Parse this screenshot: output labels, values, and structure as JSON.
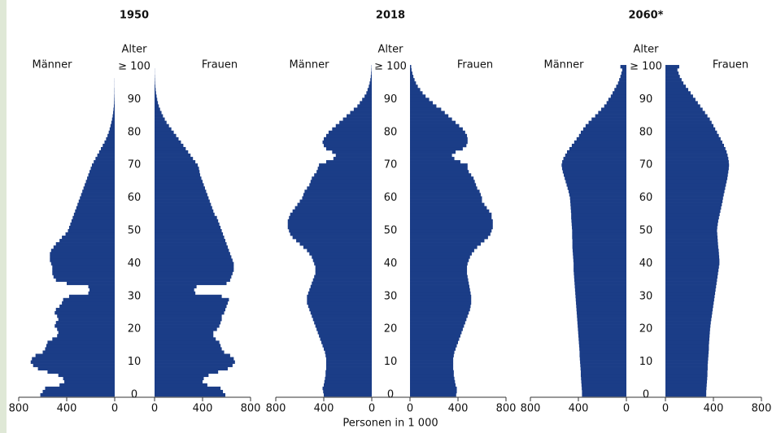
{
  "xlabel": "Personen in 1 000",
  "chart_data": [
    {
      "type": "population-pyramid",
      "title": "1950",
      "age_label": "Alter",
      "xlim": [
        0,
        800
      ],
      "xticks": [
        0,
        400,
        800
      ],
      "categories": [
        "0",
        null,
        null,
        null,
        null,
        null,
        null,
        null,
        null,
        null,
        "10",
        null,
        null,
        null,
        null,
        null,
        null,
        null,
        null,
        null,
        "20",
        null,
        null,
        null,
        null,
        null,
        null,
        null,
        null,
        null,
        "30",
        null,
        null,
        null,
        null,
        null,
        null,
        null,
        null,
        null,
        "40",
        null,
        null,
        null,
        null,
        null,
        null,
        null,
        null,
        null,
        "50",
        null,
        null,
        null,
        null,
        null,
        null,
        null,
        null,
        null,
        "60",
        null,
        null,
        null,
        null,
        null,
        null,
        null,
        null,
        null,
        "70",
        null,
        null,
        null,
        null,
        null,
        null,
        null,
        null,
        null,
        "80",
        null,
        null,
        null,
        null,
        null,
        null,
        null,
        null,
        null,
        "90",
        null,
        null,
        null,
        null,
        null,
        null,
        null,
        null,
        null,
        "≥ 100"
      ],
      "series": [
        {
          "name": "Männer",
          "color": "#1b3d87",
          "values": [
            620,
            600,
            580,
            460,
            420,
            430,
            470,
            560,
            640,
            680,
            700,
            690,
            660,
            600,
            580,
            570,
            560,
            520,
            480,
            470,
            480,
            500,
            490,
            470,
            480,
            500,
            490,
            460,
            440,
            430,
            380,
            220,
            210,
            220,
            400,
            490,
            510,
            520,
            520,
            520,
            530,
            540,
            540,
            540,
            530,
            510,
            490,
            460,
            440,
            410,
            390,
            380,
            370,
            360,
            350,
            340,
            330,
            320,
            310,
            300,
            290,
            280,
            270,
            260,
            250,
            240,
            230,
            220,
            210,
            200,
            190,
            175,
            160,
            145,
            130,
            115,
            100,
            85,
            72,
            60,
            50,
            42,
            35,
            28,
            22,
            17,
            13,
            10,
            7,
            5,
            4,
            3,
            2,
            2,
            1,
            1,
            1,
            0,
            0,
            0,
            0
          ]
        },
        {
          "name": "Frauen",
          "color": "#1b3d87",
          "values": [
            590,
            570,
            550,
            440,
            400,
            410,
            450,
            530,
            610,
            650,
            670,
            660,
            630,
            580,
            560,
            550,
            540,
            510,
            490,
            490,
            520,
            540,
            550,
            560,
            560,
            580,
            590,
            600,
            610,
            620,
            560,
            340,
            330,
            350,
            600,
            630,
            640,
            650,
            660,
            660,
            660,
            650,
            640,
            630,
            620,
            610,
            600,
            590,
            580,
            570,
            560,
            550,
            540,
            530,
            520,
            500,
            490,
            480,
            470,
            460,
            450,
            440,
            430,
            420,
            410,
            400,
            390,
            380,
            375,
            370,
            360,
            340,
            320,
            300,
            280,
            260,
            240,
            220,
            200,
            180,
            160,
            140,
            120,
            100,
            85,
            70,
            58,
            46,
            36,
            28,
            22,
            17,
            12,
            9,
            6,
            4,
            3,
            2,
            1,
            1,
            0
          ]
        }
      ]
    },
    {
      "type": "population-pyramid",
      "title": "2018",
      "age_label": "Alter",
      "xlim": [
        0,
        800
      ],
      "xticks": [
        0,
        400,
        800
      ],
      "categories": [
        "0",
        null,
        null,
        null,
        null,
        null,
        null,
        null,
        null,
        null,
        "10",
        null,
        null,
        null,
        null,
        null,
        null,
        null,
        null,
        null,
        "20",
        null,
        null,
        null,
        null,
        null,
        null,
        null,
        null,
        null,
        "30",
        null,
        null,
        null,
        null,
        null,
        null,
        null,
        null,
        null,
        "40",
        null,
        null,
        null,
        null,
        null,
        null,
        null,
        null,
        null,
        "50",
        null,
        null,
        null,
        null,
        null,
        null,
        null,
        null,
        null,
        "60",
        null,
        null,
        null,
        null,
        null,
        null,
        null,
        null,
        null,
        "70",
        null,
        null,
        null,
        null,
        null,
        null,
        null,
        null,
        null,
        "80",
        null,
        null,
        null,
        null,
        null,
        null,
        null,
        null,
        null,
        "90",
        null,
        null,
        null,
        null,
        null,
        null,
        null,
        null,
        null,
        "≥ 100"
      ],
      "series": [
        {
          "name": "Männer",
          "color": "#1b3d87",
          "values": [
            400,
            405,
            410,
            400,
            395,
            390,
            385,
            385,
            380,
            380,
            380,
            380,
            385,
            390,
            400,
            410,
            420,
            430,
            440,
            450,
            460,
            470,
            480,
            490,
            500,
            510,
            520,
            530,
            540,
            540,
            540,
            530,
            520,
            510,
            500,
            490,
            480,
            470,
            470,
            470,
            480,
            490,
            500,
            520,
            540,
            570,
            600,
            630,
            660,
            680,
            690,
            700,
            700,
            700,
            690,
            680,
            660,
            640,
            620,
            600,
            580,
            570,
            560,
            540,
            520,
            510,
            500,
            480,
            460,
            450,
            440,
            380,
            320,
            300,
            330,
            380,
            400,
            410,
            400,
            380,
            360,
            330,
            300,
            270,
            240,
            210,
            180,
            150,
            120,
            100,
            80,
            60,
            45,
            35,
            25,
            18,
            12,
            8,
            5,
            3,
            2
          ]
        },
        {
          "name": "Frauen",
          "color": "#1b3d87",
          "values": [
            385,
            390,
            390,
            380,
            375,
            370,
            365,
            365,
            360,
            360,
            360,
            360,
            365,
            370,
            380,
            390,
            400,
            410,
            420,
            430,
            440,
            450,
            460,
            470,
            480,
            490,
            500,
            505,
            510,
            510,
            510,
            505,
            500,
            495,
            490,
            485,
            480,
            475,
            475,
            475,
            480,
            490,
            500,
            515,
            535,
            560,
            590,
            620,
            650,
            670,
            680,
            690,
            690,
            690,
            680,
            680,
            660,
            640,
            620,
            600,
            600,
            590,
            580,
            560,
            550,
            540,
            530,
            510,
            490,
            480,
            480,
            420,
            370,
            350,
            380,
            440,
            470,
            480,
            480,
            475,
            460,
            440,
            410,
            380,
            350,
            320,
            290,
            260,
            220,
            190,
            160,
            130,
            105,
            85,
            65,
            50,
            38,
            28,
            20,
            13,
            10
          ]
        }
      ]
    },
    {
      "type": "population-pyramid",
      "title": "2060*",
      "age_label": "Alter",
      "xlim": [
        0,
        800
      ],
      "xticks": [
        0,
        400,
        800
      ],
      "categories": [
        "0",
        null,
        null,
        null,
        null,
        null,
        null,
        null,
        null,
        null,
        "10",
        null,
        null,
        null,
        null,
        null,
        null,
        null,
        null,
        null,
        "20",
        null,
        null,
        null,
        null,
        null,
        null,
        null,
        null,
        null,
        "30",
        null,
        null,
        null,
        null,
        null,
        null,
        null,
        null,
        null,
        "40",
        null,
        null,
        null,
        null,
        null,
        null,
        null,
        null,
        null,
        "50",
        null,
        null,
        null,
        null,
        null,
        null,
        null,
        null,
        null,
        "60",
        null,
        null,
        null,
        null,
        null,
        null,
        null,
        null,
        null,
        "70",
        null,
        null,
        null,
        null,
        null,
        null,
        null,
        null,
        null,
        "80",
        null,
        null,
        null,
        null,
        null,
        null,
        null,
        null,
        null,
        "90",
        null,
        null,
        null,
        null,
        null,
        null,
        null,
        null,
        null,
        "≥ 100"
      ],
      "series": [
        {
          "name": "Männer",
          "color": "#1b3d87",
          "values": [
            370,
            370,
            372,
            374,
            376,
            378,
            380,
            380,
            382,
            384,
            386,
            388,
            390,
            390,
            392,
            394,
            396,
            398,
            400,
            402,
            404,
            406,
            408,
            410,
            412,
            414,
            416,
            418,
            420,
            422,
            424,
            426,
            428,
            430,
            432,
            434,
            436,
            438,
            440,
            440,
            440,
            442,
            444,
            446,
            448,
            450,
            450,
            450,
            452,
            452,
            452,
            454,
            456,
            458,
            460,
            460,
            462,
            464,
            466,
            468,
            470,
            476,
            482,
            490,
            498,
            506,
            514,
            522,
            530,
            536,
            540,
            535,
            525,
            510,
            495,
            475,
            455,
            435,
            415,
            395,
            380,
            360,
            340,
            315,
            290,
            260,
            235,
            210,
            185,
            165,
            150,
            130,
            115,
            100,
            85,
            70,
            60,
            50,
            42,
            35,
            50
          ]
        },
        {
          "name": "Frauen",
          "color": "#1b3d87",
          "values": [
            340,
            340,
            342,
            344,
            346,
            348,
            350,
            350,
            352,
            352,
            354,
            356,
            358,
            360,
            362,
            362,
            364,
            366,
            368,
            370,
            372,
            375,
            378,
            382,
            386,
            390,
            394,
            398,
            402,
            406,
            410,
            414,
            418,
            422,
            426,
            430,
            434,
            438,
            442,
            446,
            450,
            450,
            448,
            446,
            444,
            440,
            438,
            436,
            434,
            432,
            430,
            432,
            436,
            440,
            446,
            452,
            458,
            464,
            470,
            476,
            480,
            486,
            492,
            498,
            504,
            510,
            516,
            520,
            524,
            528,
            530,
            528,
            524,
            518,
            510,
            500,
            488,
            474,
            460,
            445,
            430,
            415,
            400,
            385,
            370,
            350,
            330,
            310,
            290,
            270,
            250,
            230,
            210,
            190,
            170,
            150,
            135,
            120,
            110,
            100,
            115
          ]
        }
      ]
    }
  ]
}
